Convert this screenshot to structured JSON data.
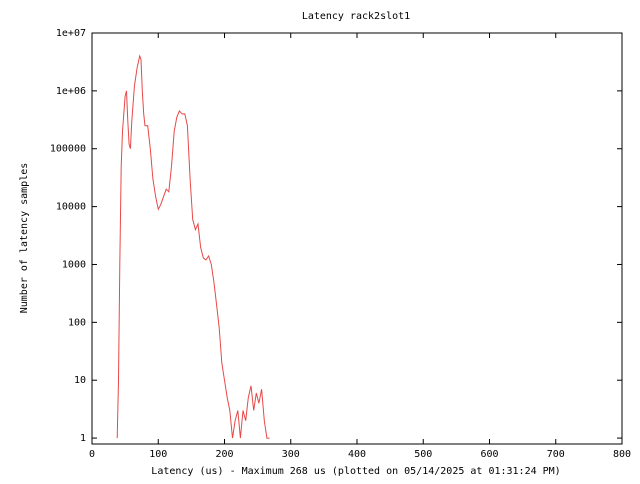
{
  "chart_data": {
    "type": "line",
    "title": "Latency rack2slot1",
    "x_label": "Latency (us) - Maximum 268 us (plotted on 05/14/2025 at 01:31:24 PM)",
    "y_label": "Number of latency samples",
    "y_log": true,
    "color": "#e84848",
    "xlim": [
      0,
      800
    ],
    "xticks": [
      0,
      100,
      200,
      300,
      400,
      500,
      600,
      700,
      800
    ],
    "ylim": [
      0.79,
      10000000
    ],
    "yticks": [
      {
        "value": 10000000,
        "label": "1e+07"
      },
      {
        "value": 1000000,
        "label": "1e+06"
      },
      100000,
      10000,
      1000,
      100,
      10,
      1
    ],
    "x": [
      38,
      40,
      42,
      44,
      46,
      50,
      52,
      54,
      56,
      58,
      60,
      64,
      68,
      72,
      74,
      76,
      78,
      80,
      84,
      88,
      92,
      96,
      100,
      104,
      108,
      112,
      116,
      120,
      124,
      128,
      132,
      136,
      140,
      144,
      148,
      152,
      156,
      160,
      164,
      168,
      172,
      176,
      180,
      184,
      188,
      192,
      196,
      200,
      204,
      208,
      212,
      216,
      220,
      224,
      228,
      232,
      236,
      240,
      244,
      248,
      252,
      256,
      260,
      264,
      268
    ],
    "values": [
      1,
      10,
      1000,
      50000,
      200000,
      800000,
      1000000,
      300000,
      120000,
      100000,
      300000,
      1200000,
      2500000,
      4000000,
      3500000,
      1000000,
      400000,
      250000,
      250000,
      100000,
      30000,
      15000,
      9000,
      11000,
      15000,
      20000,
      18000,
      50000,
      200000,
      350000,
      450000,
      400000,
      400000,
      250000,
      30000,
      6000,
      4000,
      5000,
      2000,
      1300,
      1200,
      1400,
      1000,
      500,
      200,
      80,
      20,
      10,
      5,
      3,
      1,
      2,
      3,
      1,
      3,
      2,
      5,
      8,
      3,
      6,
      4,
      7,
      2,
      1,
      1
    ]
  }
}
